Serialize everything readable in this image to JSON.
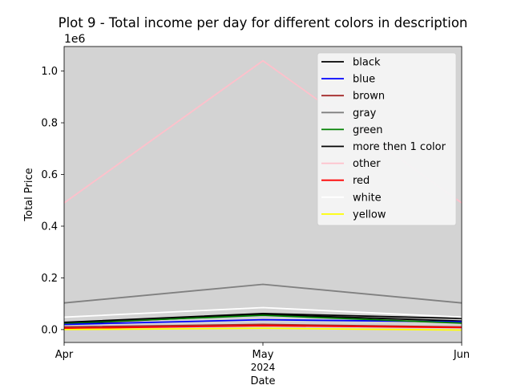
{
  "chart_data": {
    "type": "line",
    "title": "Plot 9 - Total income per day for different colors in description",
    "xlabel": "Date",
    "ylabel": "Total Price",
    "y_offset_label": "1e6",
    "background": "#d3d3d3",
    "x": [
      "2024-04",
      "2024-05",
      "2024-06"
    ],
    "x_tick_labels": [
      "Apr",
      "May",
      "Jun"
    ],
    "x_year_label": "2024",
    "y_ticks": [
      0.0,
      0.2,
      0.4,
      0.6,
      0.8,
      1.0
    ],
    "y_tick_labels": [
      "0.0",
      "0.2",
      "0.4",
      "0.6",
      "0.8",
      "1.0"
    ],
    "ylim": [
      -50000,
      1095000
    ],
    "grid": false,
    "legend_position": "top-right",
    "series": [
      {
        "name": "black",
        "color": "#000000",
        "values": [
          22000,
          58000,
          33000
        ]
      },
      {
        "name": "blue",
        "color": "#0000ff",
        "values": [
          20000,
          38000,
          30000
        ]
      },
      {
        "name": "brown",
        "color": "#a52a2a",
        "values": [
          10000,
          20000,
          10000
        ]
      },
      {
        "name": "gray",
        "color": "#808080",
        "values": [
          103000,
          175000,
          103000
        ]
      },
      {
        "name": "green",
        "color": "#008000",
        "values": [
          25000,
          55000,
          25000
        ]
      },
      {
        "name": "more then 1 color",
        "color": "#000000",
        "values": [
          28000,
          62000,
          43000
        ]
      },
      {
        "name": "other",
        "color": "#ffc0cb",
        "values": [
          490000,
          1040000,
          490000
        ]
      },
      {
        "name": "red",
        "color": "#ff0000",
        "values": [
          5000,
          15000,
          8000
        ]
      },
      {
        "name": "white",
        "color": "#ffffff",
        "values": [
          48000,
          85000,
          48000
        ]
      },
      {
        "name": "yellow",
        "color": "#ffff00",
        "values": [
          0,
          5000,
          -2000
        ]
      }
    ]
  }
}
